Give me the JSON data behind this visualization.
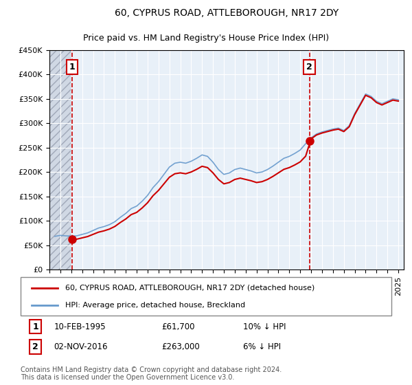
{
  "title": "60, CYPRUS ROAD, ATTLEBOROUGH, NR17 2DY",
  "subtitle": "Price paid vs. HM Land Registry's House Price Index (HPI)",
  "ylabel_ticks": [
    "£0",
    "£50K",
    "£100K",
    "£150K",
    "£200K",
    "£250K",
    "£300K",
    "£350K",
    "£400K",
    "£450K"
  ],
  "ylim": [
    0,
    450000
  ],
  "xlim_start": 1993.0,
  "xlim_end": 2025.5,
  "sale1": {
    "date_num": 1995.1,
    "price": 61700,
    "label": "1"
  },
  "sale2": {
    "date_num": 2016.84,
    "price": 263000,
    "label": "2"
  },
  "legend_line1": "60, CYPRUS ROAD, ATTLEBOROUGH, NR17 2DY (detached house)",
  "legend_line2": "HPI: Average price, detached house, Breckland",
  "annotation1": "1    10-FEB-1995         £61,700        10% ↓ HPI",
  "annotation2": "2    02-NOV-2016         £263,000       6% ↓ HPI",
  "footer": "Contains HM Land Registry data © Crown copyright and database right 2024.\nThis data is licensed under the Open Government Licence v3.0.",
  "hpi_color": "#6699cc",
  "sale_color": "#cc0000",
  "bg_color": "#e8f0f8",
  "hatch_color": "#c0c8d8",
  "grid_color": "#ffffff",
  "sale_marker_color": "#cc0000"
}
